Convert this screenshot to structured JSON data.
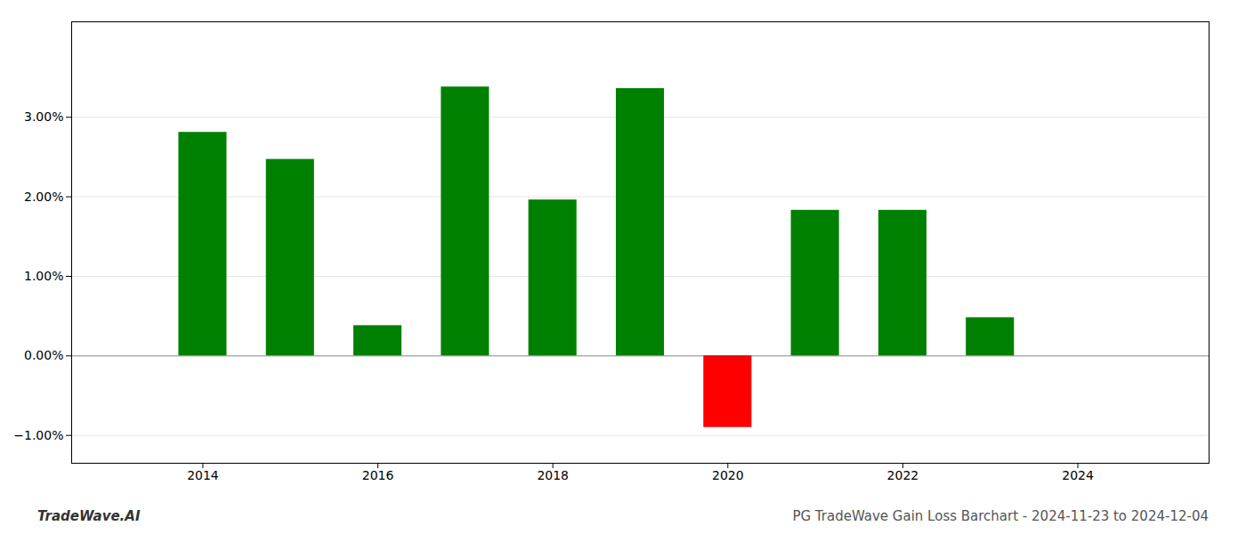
{
  "chart_data": {
    "type": "bar",
    "title": "PG TradeWave Gain Loss Barchart - 2024-11-23 to 2024-12-04",
    "annotations": [
      "TradeWave.AI"
    ],
    "x": [
      2014,
      2015,
      2016,
      2017,
      2018,
      2019,
      2020,
      2021,
      2022,
      2023
    ],
    "values": [
      0.0281,
      0.0247,
      0.0038,
      0.0338,
      0.0196,
      0.0336,
      -0.009,
      0.0183,
      0.0183,
      0.0048
    ],
    "colors": [
      "#008000",
      "#008000",
      "#008000",
      "#008000",
      "#008000",
      "#008000",
      "#ff0000",
      "#008000",
      "#008000",
      "#008000"
    ],
    "xlim": [
      2012.5,
      2025.5
    ],
    "xticks": [
      2014,
      2016,
      2018,
      2020,
      2022,
      2024
    ],
    "ylim": [
      -0.0135,
      0.042
    ],
    "yticks": [
      {
        "value": -0.01,
        "label": "−1.00%"
      },
      {
        "value": 0.0,
        "label": "0.00%"
      },
      {
        "value": 0.01,
        "label": "1.00%"
      },
      {
        "value": 0.02,
        "label": "2.00%"
      },
      {
        "value": 0.03,
        "label": "3.00%"
      }
    ],
    "grid": true
  }
}
